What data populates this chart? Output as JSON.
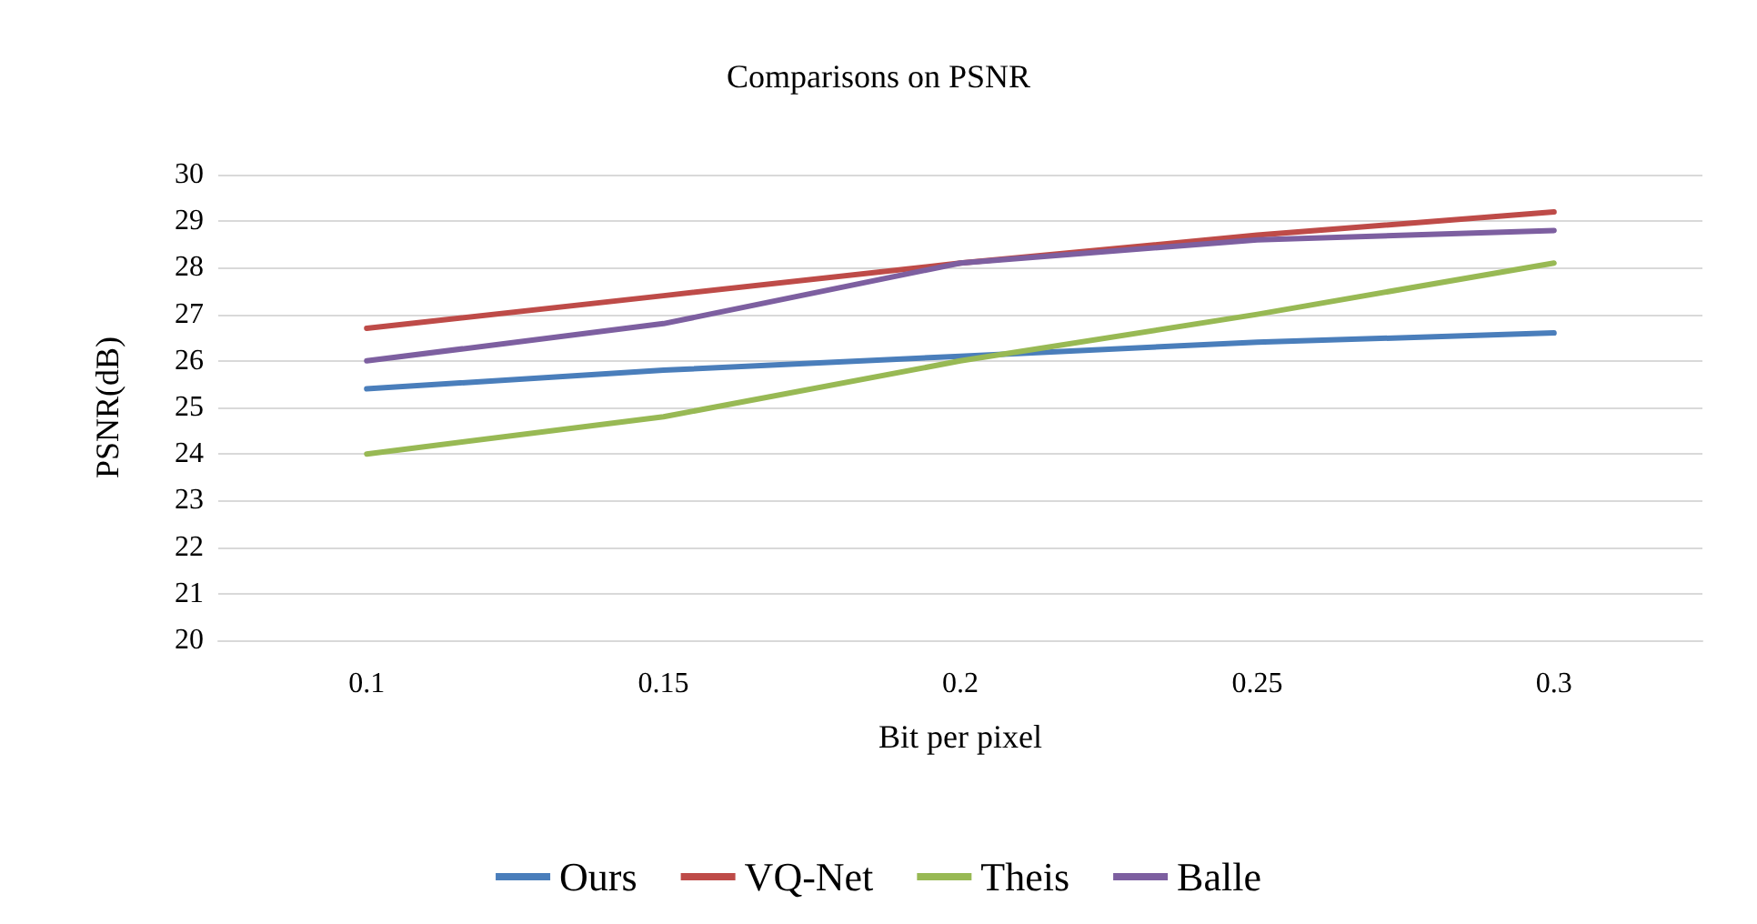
{
  "chart_data": {
    "type": "line",
    "title": "Comparisons on PSNR",
    "xlabel": "Bit per pixel",
    "ylabel": "PSNR(dB)",
    "categories": [
      "0.1",
      "0.15",
      "0.2",
      "0.25",
      "0.3"
    ],
    "series": [
      {
        "name": "Ours",
        "color": "#4a7ebb",
        "values": [
          25.4,
          25.8,
          26.1,
          26.4,
          26.6
        ]
      },
      {
        "name": "VQ-Net",
        "color": "#be4b48",
        "values": [
          26.7,
          27.4,
          28.1,
          28.7,
          29.2
        ]
      },
      {
        "name": "Theis",
        "color": "#98b954",
        "values": [
          24.0,
          24.8,
          26.0,
          27.0,
          28.1
        ]
      },
      {
        "name": "Balle",
        "color": "#7d5fa0",
        "values": [
          26.0,
          26.8,
          28.1,
          28.6,
          28.8
        ]
      }
    ],
    "ylim": [
      20,
      30
    ],
    "yticks": [
      20,
      21,
      22,
      23,
      24,
      25,
      26,
      27,
      28,
      29,
      30
    ],
    "grid": "y",
    "legend": "bottom",
    "marker": "none",
    "line_style": "solid"
  }
}
